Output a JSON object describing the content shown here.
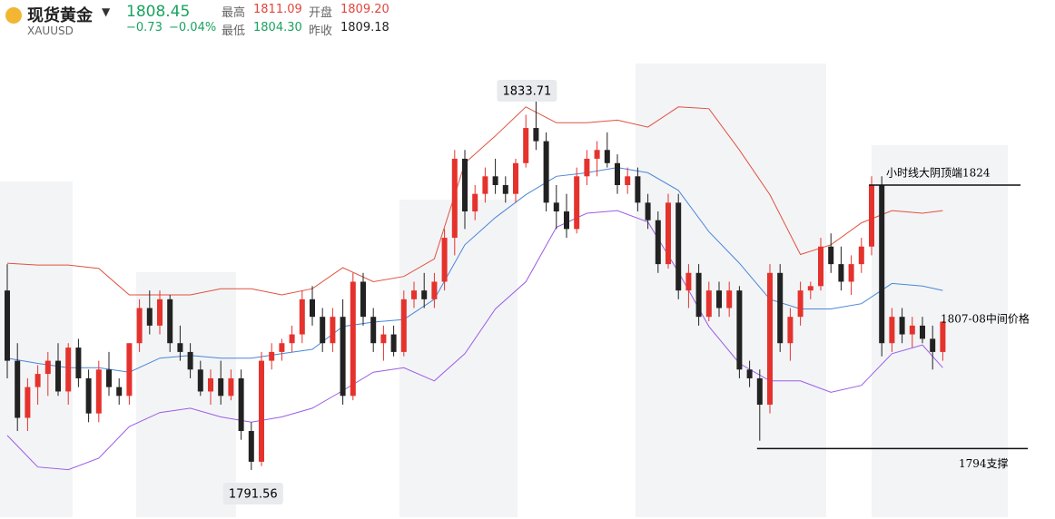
{
  "header": {
    "name": "现货黄金",
    "symbol": "XAUUSD",
    "price": "1808.45",
    "change": "−0.73",
    "change_pct": "−0.04%",
    "stats": [
      {
        "label": "最高",
        "value": "1811.09"
      },
      {
        "label": "开盘",
        "value": "1809.20"
      },
      {
        "label": "最低",
        "value": "1804.30"
      },
      {
        "label": "昨收",
        "value": "1809.18"
      }
    ]
  },
  "chart_data": {
    "type": "candlestick",
    "up_color": "#e5322d",
    "down_color": "#222222",
    "open": [
      1812,
      1804,
      1797.5,
      1801,
      1802.5,
      1804,
      1800.5,
      1805.5,
      1802,
      1798,
      1803,
      1801,
      1800,
      1806,
      1810,
      1808,
      1811,
      1806,
      1805,
      1803,
      1800.5,
      1802,
      1800,
      1802,
      1796,
      1792.5,
      1804,
      1805,
      1806,
      1807,
      1811,
      1809,
      1806,
      1809,
      1800,
      1813,
      1809,
      1806,
      1807,
      1805,
      1811,
      1812,
      1811,
      1813,
      1818,
      1827,
      1821,
      1823,
      1825,
      1824,
      1823,
      1826.5,
      1830.5,
      1829,
      1822,
      1821,
      1819,
      1825,
      1827,
      1828,
      1826.5,
      1824,
      1825,
      1822,
      1820,
      1815,
      1822,
      1812,
      1814,
      1809,
      1812,
      1810,
      1812,
      1803,
      1802,
      1799,
      1814,
      1806,
      1809,
      1812,
      1812.5,
      1817,
      1815,
      1813,
      1815,
      1817,
      1824,
      1806,
      1809,
      1807,
      1808,
      1806.5,
      1805
    ],
    "high": [
      1815,
      1806,
      1802,
      1803.5,
      1805,
      1806,
      1806,
      1806.5,
      1803,
      1804,
      1805,
      1802,
      1806,
      1811,
      1812,
      1812,
      1811.5,
      1808,
      1806,
      1804,
      1803,
      1804,
      1803,
      1803,
      1797,
      1805,
      1806,
      1806.5,
      1808,
      1812,
      1812.5,
      1810,
      1810,
      1811,
      1814,
      1814,
      1810,
      1808,
      1808,
      1812,
      1813,
      1814,
      1814,
      1819,
      1828,
      1828,
      1824,
      1826,
      1827,
      1825,
      1827,
      1832,
      1833.71,
      1830,
      1824,
      1823,
      1826,
      1828,
      1829,
      1830,
      1827.5,
      1826,
      1826,
      1823,
      1821,
      1823,
      1823,
      1815,
      1815,
      1813,
      1813,
      1813,
      1812.5,
      1804,
      1803,
      1815,
      1815,
      1810,
      1813,
      1813,
      1818,
      1818.5,
      1817,
      1816,
      1818,
      1825,
      1825,
      1810,
      1810,
      1809,
      1809,
      1808,
      1808.5
    ],
    "low": [
      1802,
      1796,
      1796,
      1799,
      1800,
      1800,
      1799,
      1801,
      1797,
      1797,
      1800,
      1799,
      1799,
      1805,
      1807,
      1807,
      1805,
      1804,
      1802,
      1800,
      1799,
      1799,
      1799.5,
      1795,
      1791.56,
      1792,
      1803,
      1804,
      1805,
      1806,
      1808,
      1805,
      1805,
      1799,
      1799.5,
      1808,
      1805,
      1804,
      1804.5,
      1804.5,
      1810,
      1810,
      1810,
      1812,
      1816,
      1819,
      1820,
      1822,
      1823,
      1822,
      1822,
      1826,
      1828,
      1821,
      1819,
      1818,
      1818.5,
      1824,
      1825,
      1826,
      1823,
      1823,
      1821,
      1819,
      1814,
      1814.5,
      1811,
      1810,
      1808,
      1808.5,
      1809,
      1809,
      1802,
      1801,
      1794.9,
      1798,
      1805,
      1804,
      1808,
      1811,
      1812,
      1814,
      1812,
      1811.5,
      1814,
      1816,
      1804.5,
      1805,
      1806,
      1805.5,
      1806,
      1803,
      1804
    ],
    "close": [
      1804,
      1797.5,
      1801,
      1802.5,
      1804,
      1800.5,
      1805.5,
      1802,
      1798,
      1803,
      1801,
      1800,
      1806,
      1810,
      1808,
      1811,
      1806,
      1805,
      1803,
      1800.5,
      1802,
      1800,
      1802,
      1796,
      1792.5,
      1804,
      1805,
      1806,
      1807,
      1811,
      1809,
      1806,
      1809,
      1800,
      1813,
      1809,
      1806,
      1807,
      1805,
      1811,
      1812,
      1811,
      1813,
      1818,
      1827,
      1821,
      1823,
      1825,
      1824,
      1823,
      1826.5,
      1830.5,
      1829,
      1822,
      1821,
      1819,
      1825,
      1827,
      1828,
      1826.5,
      1824,
      1825,
      1822,
      1820,
      1815,
      1822,
      1812,
      1814,
      1809,
      1812,
      1810,
      1812,
      1803,
      1802,
      1799,
      1814,
      1806,
      1809,
      1812,
      1812.5,
      1817,
      1815,
      1813,
      1815,
      1817,
      1824,
      1806,
      1809,
      1807,
      1808,
      1806.5,
      1805,
      1808.45
    ],
    "bands": {
      "x": [
        0,
        3,
        6,
        9,
        12,
        15,
        18,
        21,
        24,
        27,
        30,
        33,
        36,
        39,
        42,
        45,
        48,
        51,
        54,
        57,
        60,
        63,
        66,
        69,
        72,
        75,
        78,
        81,
        84,
        87,
        90,
        92
      ],
      "series": [
        {
          "color": "#e0523f",
          "values": [
            1815.1,
            1814.9,
            1814.9,
            1814.5,
            1811.5,
            1811.5,
            1811.5,
            1812.2,
            1812.2,
            1811.5,
            1812.2,
            1814.6,
            1813.0,
            1813.6,
            1815.6,
            1826.5,
            1829.6,
            1832.9,
            1831.1,
            1831.1,
            1831.4,
            1830.6,
            1832.9,
            1832.7,
            1828.0,
            1822.9,
            1816.1,
            1817.2,
            1819.7,
            1821.1,
            1820.8,
            1821.1
          ]
        },
        {
          "color": "#4a86d8",
          "values": [
            1804.3,
            1803.7,
            1803.2,
            1803.2,
            1802.7,
            1804.3,
            1804.6,
            1804.3,
            1804.3,
            1804.8,
            1805.3,
            1807.9,
            1808.4,
            1808.7,
            1811.0,
            1817.2,
            1820.3,
            1822.9,
            1825.0,
            1825.4,
            1826.0,
            1825.4,
            1823.4,
            1818.7,
            1815.1,
            1811.0,
            1809.9,
            1809.9,
            1810.5,
            1812.8,
            1812.5,
            1812.0
          ]
        },
        {
          "color": "#9b5de5",
          "values": [
            1795.5,
            1791.9,
            1791.6,
            1792.9,
            1796.5,
            1798.1,
            1798.6,
            1797.6,
            1797.0,
            1797.6,
            1798.6,
            1800.6,
            1802.7,
            1803.2,
            1801.7,
            1804.8,
            1809.9,
            1813.0,
            1819.2,
            1820.8,
            1821.1,
            1819.8,
            1814.1,
            1807.9,
            1803.7,
            1801.7,
            1801.7,
            1800.4,
            1801.2,
            1804.8,
            1805.8,
            1803.2
          ]
        }
      ]
    },
    "levels": [
      {
        "value": 1824,
        "label": "小时线大阴顶端1824"
      },
      {
        "value": 1794,
        "label": "1794支撑"
      }
    ],
    "annotations": [
      "1807-08中间价格"
    ]
  }
}
